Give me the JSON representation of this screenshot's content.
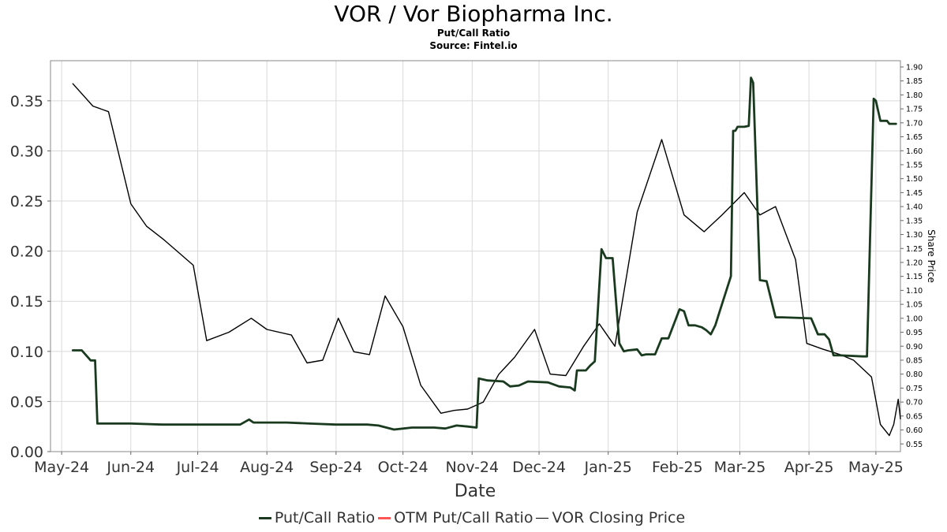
{
  "chart_data": {
    "type": "line",
    "title": "VOR / Vor Biopharma Inc.",
    "subtitle": "Put/Call Ratio",
    "source": "Source: Fintel.io",
    "xlabel": "Date",
    "ylabel_left": "",
    "ylabel_right": "Share Price",
    "x_ticks": [
      "May-24",
      "Jun-24",
      "Jul-24",
      "Aug-24",
      "Sep-24",
      "Oct-24",
      "Nov-24",
      "Dec-24",
      "Jan-25",
      "Feb-25",
      "Mar-25",
      "Apr-25",
      "May-25"
    ],
    "x_tick_dates": [
      "2024-05-01",
      "2024-06-01",
      "2024-07-01",
      "2024-08-01",
      "2024-09-01",
      "2024-10-01",
      "2024-11-01",
      "2024-12-01",
      "2025-01-01",
      "2025-02-01",
      "2025-03-01",
      "2025-04-01",
      "2025-05-01"
    ],
    "xlim": [
      "2024-04-26",
      "2025-05-12"
    ],
    "ylim_left": [
      0.0,
      0.39
    ],
    "y_ticks_left": [
      "0.00",
      "0.05",
      "0.10",
      "0.15",
      "0.20",
      "0.25",
      "0.30",
      "0.35"
    ],
    "ylim_right": [
      0.5225,
      1.9225
    ],
    "y_ticks_right": [
      "0.55",
      "0.60",
      "0.65",
      "0.70",
      "0.75",
      "0.80",
      "0.85",
      "0.90",
      "0.95",
      "1.00",
      "1.05",
      "1.10",
      "1.15",
      "1.20",
      "1.25",
      "1.30",
      "1.35",
      "1.40",
      "1.45",
      "1.50",
      "1.55",
      "1.60",
      "1.65",
      "1.70",
      "1.75",
      "1.80",
      "1.85",
      "1.90"
    ],
    "grid": true,
    "legend_position": "bottom-center",
    "colors": {
      "put_call": "#1a3a1f",
      "otm_put_call": "#ff5555",
      "closing_price": "#000000",
      "grid": "#d9d9d9",
      "axis": "#888888"
    },
    "series": [
      {
        "name": "Put/Call Ratio",
        "axis": "left",
        "points": [
          [
            "2024-05-06",
            0.101
          ],
          [
            "2024-05-10",
            0.101
          ],
          [
            "2024-05-14",
            0.091
          ],
          [
            "2024-05-16",
            0.091
          ],
          [
            "2024-05-17",
            0.028
          ],
          [
            "2024-06-01",
            0.028
          ],
          [
            "2024-06-15",
            0.027
          ],
          [
            "2024-07-01",
            0.027
          ],
          [
            "2024-07-20",
            0.027
          ],
          [
            "2024-07-24",
            0.032
          ],
          [
            "2024-07-26",
            0.029
          ],
          [
            "2024-08-10",
            0.029
          ],
          [
            "2024-08-20",
            0.028
          ],
          [
            "2024-09-01",
            0.027
          ],
          [
            "2024-09-15",
            0.027
          ],
          [
            "2024-09-20",
            0.026
          ],
          [
            "2024-09-27",
            0.022
          ],
          [
            "2024-10-05",
            0.024
          ],
          [
            "2024-10-15",
            0.024
          ],
          [
            "2024-10-20",
            0.023
          ],
          [
            "2024-10-25",
            0.026
          ],
          [
            "2024-10-30",
            0.025
          ],
          [
            "2024-11-03",
            0.024
          ],
          [
            "2024-11-04",
            0.073
          ],
          [
            "2024-11-08",
            0.071
          ],
          [
            "2024-11-15",
            0.07
          ],
          [
            "2024-11-18",
            0.065
          ],
          [
            "2024-11-22",
            0.066
          ],
          [
            "2024-11-26",
            0.07
          ],
          [
            "2024-12-05",
            0.069
          ],
          [
            "2024-12-10",
            0.065
          ],
          [
            "2024-12-15",
            0.064
          ],
          [
            "2024-12-17",
            0.061
          ],
          [
            "2024-12-18",
            0.081
          ],
          [
            "2024-12-22",
            0.081
          ],
          [
            "2024-12-24",
            0.086
          ],
          [
            "2024-12-26",
            0.09
          ],
          [
            "2024-12-29",
            0.202
          ],
          [
            "2024-12-31",
            0.193
          ],
          [
            "2025-01-03",
            0.193
          ],
          [
            "2025-01-06",
            0.108
          ],
          [
            "2025-01-08",
            0.1
          ],
          [
            "2025-01-10",
            0.101
          ],
          [
            "2025-01-14",
            0.102
          ],
          [
            "2025-01-16",
            0.096
          ],
          [
            "2025-01-18",
            0.097
          ],
          [
            "2025-01-22",
            0.097
          ],
          [
            "2025-01-25",
            0.113
          ],
          [
            "2025-01-28",
            0.113
          ],
          [
            "2025-02-02",
            0.142
          ],
          [
            "2025-02-04",
            0.14
          ],
          [
            "2025-02-06",
            0.126
          ],
          [
            "2025-02-09",
            0.126
          ],
          [
            "2025-02-12",
            0.124
          ],
          [
            "2025-02-14",
            0.121
          ],
          [
            "2025-02-16",
            0.117
          ],
          [
            "2025-02-18",
            0.126
          ],
          [
            "2025-02-20",
            0.14
          ],
          [
            "2025-02-25",
            0.175
          ],
          [
            "2025-02-26",
            0.32
          ],
          [
            "2025-02-27",
            0.32
          ],
          [
            "2025-02-28",
            0.324
          ],
          [
            "2025-03-03",
            0.324
          ],
          [
            "2025-03-05",
            0.325
          ],
          [
            "2025-03-06",
            0.373
          ],
          [
            "2025-03-07",
            0.368
          ],
          [
            "2025-03-10",
            0.171
          ],
          [
            "2025-03-13",
            0.17
          ],
          [
            "2025-03-17",
            0.134
          ],
          [
            "2025-03-20",
            0.134
          ],
          [
            "2025-04-02",
            0.133
          ],
          [
            "2025-04-05",
            0.117
          ],
          [
            "2025-04-08",
            0.117
          ],
          [
            "2025-04-10",
            0.112
          ],
          [
            "2025-04-12",
            0.096
          ],
          [
            "2025-04-15",
            0.096
          ],
          [
            "2025-04-25",
            0.095
          ],
          [
            "2025-04-27",
            0.095
          ],
          [
            "2025-04-30",
            0.352
          ],
          [
            "2025-05-01",
            0.35
          ],
          [
            "2025-05-03",
            0.33
          ],
          [
            "2025-05-06",
            0.33
          ],
          [
            "2025-05-07",
            0.327
          ],
          [
            "2025-05-10",
            0.327
          ]
        ]
      },
      {
        "name": "OTM Put/Call Ratio",
        "axis": "left",
        "points": []
      },
      {
        "name": "VOR Closing Price",
        "axis": "right",
        "points": [
          [
            "2024-05-06",
            1.84
          ],
          [
            "2024-05-15",
            1.76
          ],
          [
            "2024-05-22",
            1.74
          ],
          [
            "2024-06-01",
            1.41
          ],
          [
            "2024-06-08",
            1.33
          ],
          [
            "2024-06-16",
            1.28
          ],
          [
            "2024-06-29",
            1.19
          ],
          [
            "2024-07-05",
            0.92
          ],
          [
            "2024-07-15",
            0.95
          ],
          [
            "2024-07-25",
            1.0
          ],
          [
            "2024-08-01",
            0.96
          ],
          [
            "2024-08-12",
            0.94
          ],
          [
            "2024-08-19",
            0.84
          ],
          [
            "2024-08-26",
            0.85
          ],
          [
            "2024-09-02",
            1.0
          ],
          [
            "2024-09-09",
            0.88
          ],
          [
            "2024-09-16",
            0.87
          ],
          [
            "2024-09-23",
            1.08
          ],
          [
            "2024-10-01",
            0.97
          ],
          [
            "2024-10-09",
            0.76
          ],
          [
            "2024-10-18",
            0.66
          ],
          [
            "2024-10-24",
            0.67
          ],
          [
            "2024-10-30",
            0.675
          ],
          [
            "2024-11-06",
            0.7
          ],
          [
            "2024-11-13",
            0.8
          ],
          [
            "2024-11-20",
            0.86
          ],
          [
            "2024-11-29",
            0.96
          ],
          [
            "2024-12-06",
            0.8
          ],
          [
            "2024-12-13",
            0.795
          ],
          [
            "2024-12-21",
            0.9
          ],
          [
            "2024-12-28",
            0.98
          ],
          [
            "2025-01-04",
            0.9
          ],
          [
            "2025-01-14",
            1.38
          ],
          [
            "2025-01-25",
            1.64
          ],
          [
            "2025-02-04",
            1.37
          ],
          [
            "2025-02-13",
            1.31
          ],
          [
            "2025-02-21",
            1.37
          ],
          [
            "2025-03-03",
            1.45
          ],
          [
            "2025-03-10",
            1.37
          ],
          [
            "2025-03-17",
            1.4
          ],
          [
            "2025-03-26",
            1.21
          ],
          [
            "2025-03-31",
            0.91
          ],
          [
            "2025-04-07",
            0.89
          ],
          [
            "2025-04-15",
            0.87
          ],
          [
            "2025-04-21",
            0.85
          ],
          [
            "2025-04-29",
            0.79
          ],
          [
            "2025-05-03",
            0.62
          ],
          [
            "2025-05-07",
            0.58
          ],
          [
            "2025-05-09",
            0.62
          ],
          [
            "2025-05-11",
            0.71
          ],
          [
            "2025-05-12",
            0.64
          ]
        ]
      }
    ]
  },
  "legend": {
    "items": [
      "Put/Call Ratio",
      "OTM Put/Call Ratio",
      "VOR Closing Price"
    ]
  }
}
